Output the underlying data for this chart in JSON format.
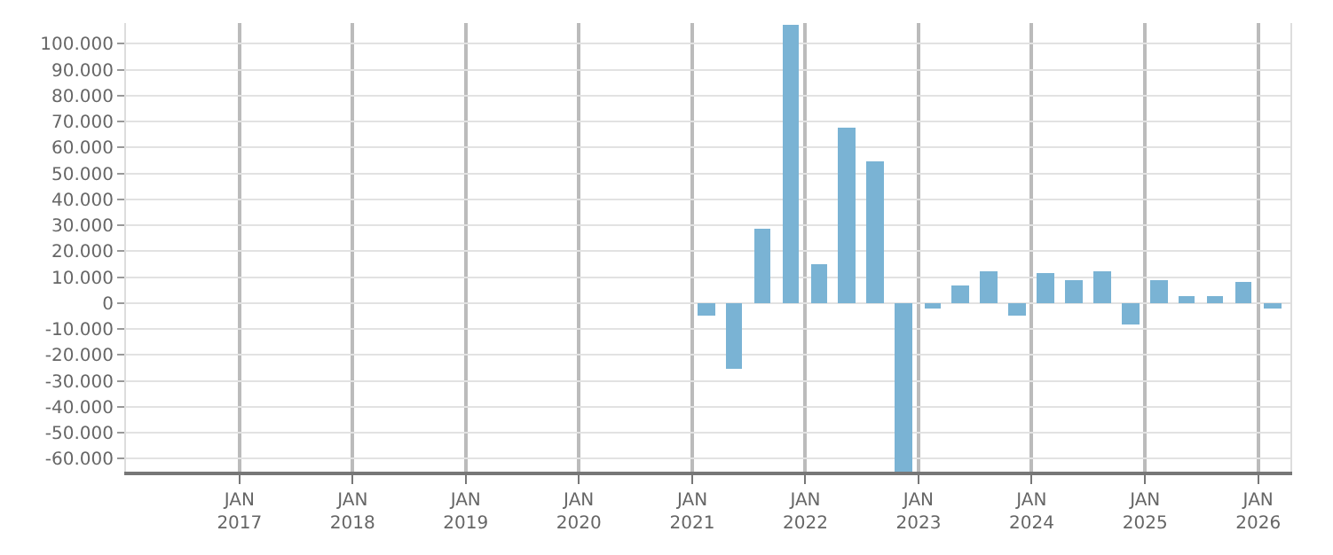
{
  "chart_data": {
    "type": "bar",
    "x": [
      "2021-02-15",
      "2021-05-15",
      "2021-08-15",
      "2021-11-15",
      "2022-02-15",
      "2022-05-15",
      "2022-08-15",
      "2022-11-15",
      "2023-02-15",
      "2023-05-15",
      "2023-08-15",
      "2023-11-15",
      "2024-02-15",
      "2024-05-15",
      "2024-08-15",
      "2024-11-15",
      "2025-02-15",
      "2025-05-15",
      "2025-08-15",
      "2025-11-15",
      "2026-02-15"
    ],
    "values": [
      -5000,
      -25000,
      29000,
      107000,
      15000,
      68000,
      55000,
      -65000,
      -2000,
      7000,
      12300,
      -5000,
      11600,
      9000,
      12300,
      -8200,
      9000,
      2600,
      2600,
      8400,
      -2400
    ],
    "color": "#7ab3d4",
    "xlim": [
      "2016-01-01",
      "2026-04-15"
    ],
    "xticks": [
      {
        "value": "2017-01-01",
        "label": "JAN\n2017"
      },
      {
        "value": "2018-01-01",
        "label": "JAN\n2018"
      },
      {
        "value": "2019-01-01",
        "label": "JAN\n2019"
      },
      {
        "value": "2020-01-01",
        "label": "JAN\n2020"
      },
      {
        "value": "2021-01-01",
        "label": "JAN\n2021"
      },
      {
        "value": "2022-01-01",
        "label": "JAN\n2022"
      },
      {
        "value": "2023-01-01",
        "label": "JAN\n2023"
      },
      {
        "value": "2024-01-01",
        "label": "JAN\n2024"
      },
      {
        "value": "2025-01-01",
        "label": "JAN\n2025"
      },
      {
        "value": "2026-01-01",
        "label": "JAN\n2026"
      }
    ],
    "ylim": [
      -65000,
      108000
    ],
    "yticks": [
      {
        "value": -60000,
        "label": "-60.000"
      },
      {
        "value": -50000,
        "label": "-50.000"
      },
      {
        "value": -40000,
        "label": "-40.000"
      },
      {
        "value": -30000,
        "label": "-30.000"
      },
      {
        "value": -20000,
        "label": "-20.000"
      },
      {
        "value": -10000,
        "label": "-10.000"
      },
      0,
      {
        "value": 10000,
        "label": "10.000"
      },
      {
        "value": 20000,
        "label": "20.000"
      },
      {
        "value": 30000,
        "label": "30.000"
      },
      {
        "value": 40000,
        "label": "40.000"
      },
      {
        "value": 50000,
        "label": "50.000"
      },
      {
        "value": 60000,
        "label": "60.000"
      },
      {
        "value": 70000,
        "label": "70.000"
      },
      {
        "value": 80000,
        "label": "80.000"
      },
      {
        "value": 90000,
        "label": "90.000"
      },
      {
        "value": 100000,
        "label": "100.000"
      }
    ],
    "grid": true
  }
}
